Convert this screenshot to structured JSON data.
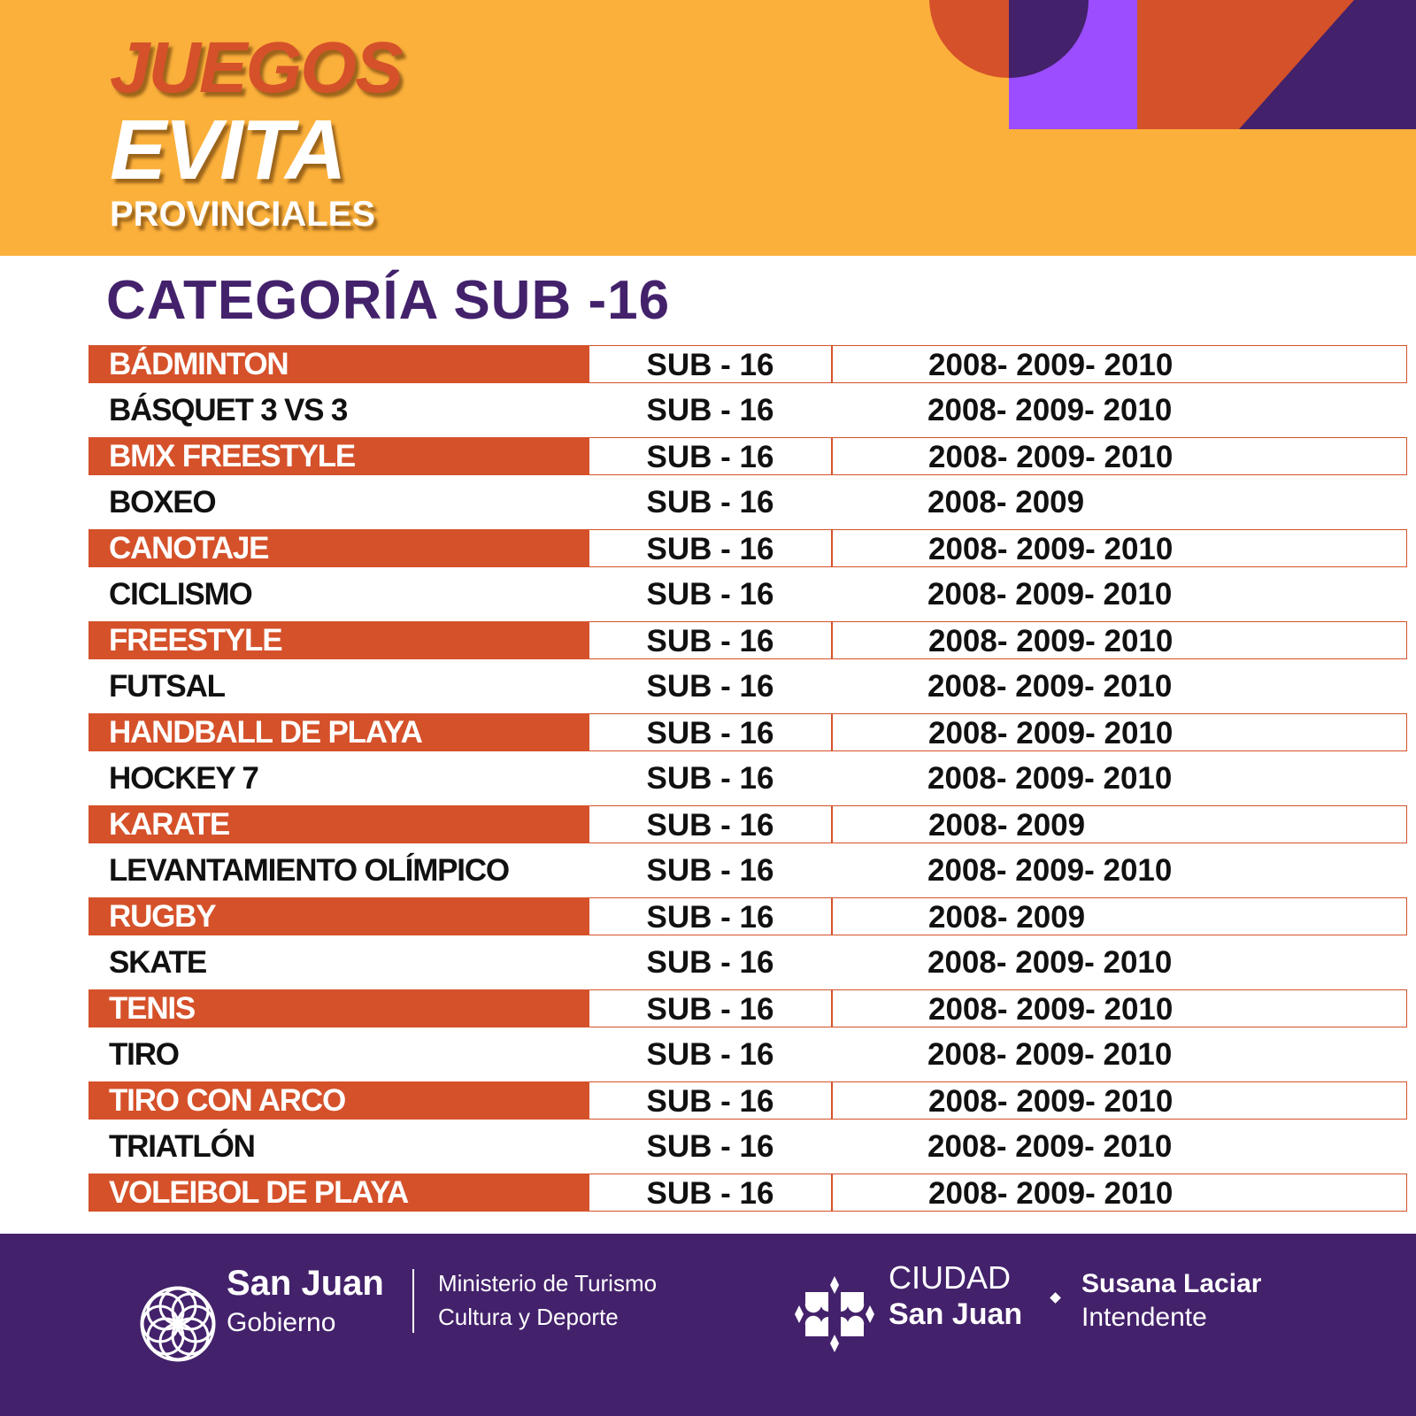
{
  "header": {
    "logo_line1": "JUEGOS",
    "logo_line2": "EVITA",
    "logo_line3": "PROVINCIALES"
  },
  "colors": {
    "orange": "#D5512A",
    "yellow": "#FBB03B",
    "purple": "#43216B",
    "violet": "#9B4DFF"
  },
  "title": "CATEGORÍA SUB -16",
  "rows": [
    {
      "sport": "BÁDMINTON",
      "category": "SUB - 16",
      "years": "2008- 2009- 2010"
    },
    {
      "sport": "BÁSQUET 3 VS 3",
      "category": "SUB - 16",
      "years": "2008- 2009- 2010"
    },
    {
      "sport": "BMX FREESTYLE",
      "category": "SUB - 16",
      "years": "2008- 2009- 2010"
    },
    {
      "sport": "BOXEO",
      "category": "SUB - 16",
      "years": "2008- 2009"
    },
    {
      "sport": "CANOTAJE",
      "category": "SUB - 16",
      "years": "2008- 2009- 2010"
    },
    {
      "sport": "CICLISMO",
      "category": "SUB - 16",
      "years": "2008- 2009- 2010"
    },
    {
      "sport": "FREESTYLE",
      "category": "SUB - 16",
      "years": "2008- 2009- 2010"
    },
    {
      "sport": "FUTSAL",
      "category": "SUB - 16",
      "years": "2008- 2009- 2010"
    },
    {
      "sport": "HANDBALL DE PLAYA",
      "category": "SUB - 16",
      "years": "2008- 2009- 2010"
    },
    {
      "sport": "HOCKEY 7",
      "category": "SUB - 16",
      "years": "2008- 2009- 2010"
    },
    {
      "sport": "KARATE",
      "category": "SUB - 16",
      "years": "2008- 2009"
    },
    {
      "sport": "LEVANTAMIENTO OLÍMPICO",
      "category": "SUB - 16",
      "years": "2008- 2009- 2010"
    },
    {
      "sport": "RUGBY",
      "category": "SUB - 16",
      "years": "2008- 2009"
    },
    {
      "sport": "SKATE",
      "category": "SUB - 16",
      "years": "2008- 2009- 2010"
    },
    {
      "sport": "TENIS",
      "category": "SUB - 16",
      "years": "2008- 2009- 2010"
    },
    {
      "sport": "TIRO",
      "category": "SUB - 16",
      "years": "2008- 2009- 2010"
    },
    {
      "sport": "TIRO CON ARCO",
      "category": "SUB - 16",
      "years": "2008- 2009- 2010"
    },
    {
      "sport": "TRIATLÓN",
      "category": "SUB - 16",
      "years": "2008- 2009- 2010"
    },
    {
      "sport": "VOLEIBOL DE PLAYA",
      "category": "SUB - 16",
      "years": "2008- 2009- 2010"
    }
  ],
  "footer": {
    "gov_name": "San Juan",
    "gov_sub": "Gobierno",
    "ministry_line1": "Ministerio de Turismo",
    "ministry_line2": "Cultura y Deporte",
    "city_line1": "CIUDAD",
    "city_line2": "San Juan",
    "mayor_name": "Susana Laciar",
    "mayor_title": "Intendente"
  }
}
